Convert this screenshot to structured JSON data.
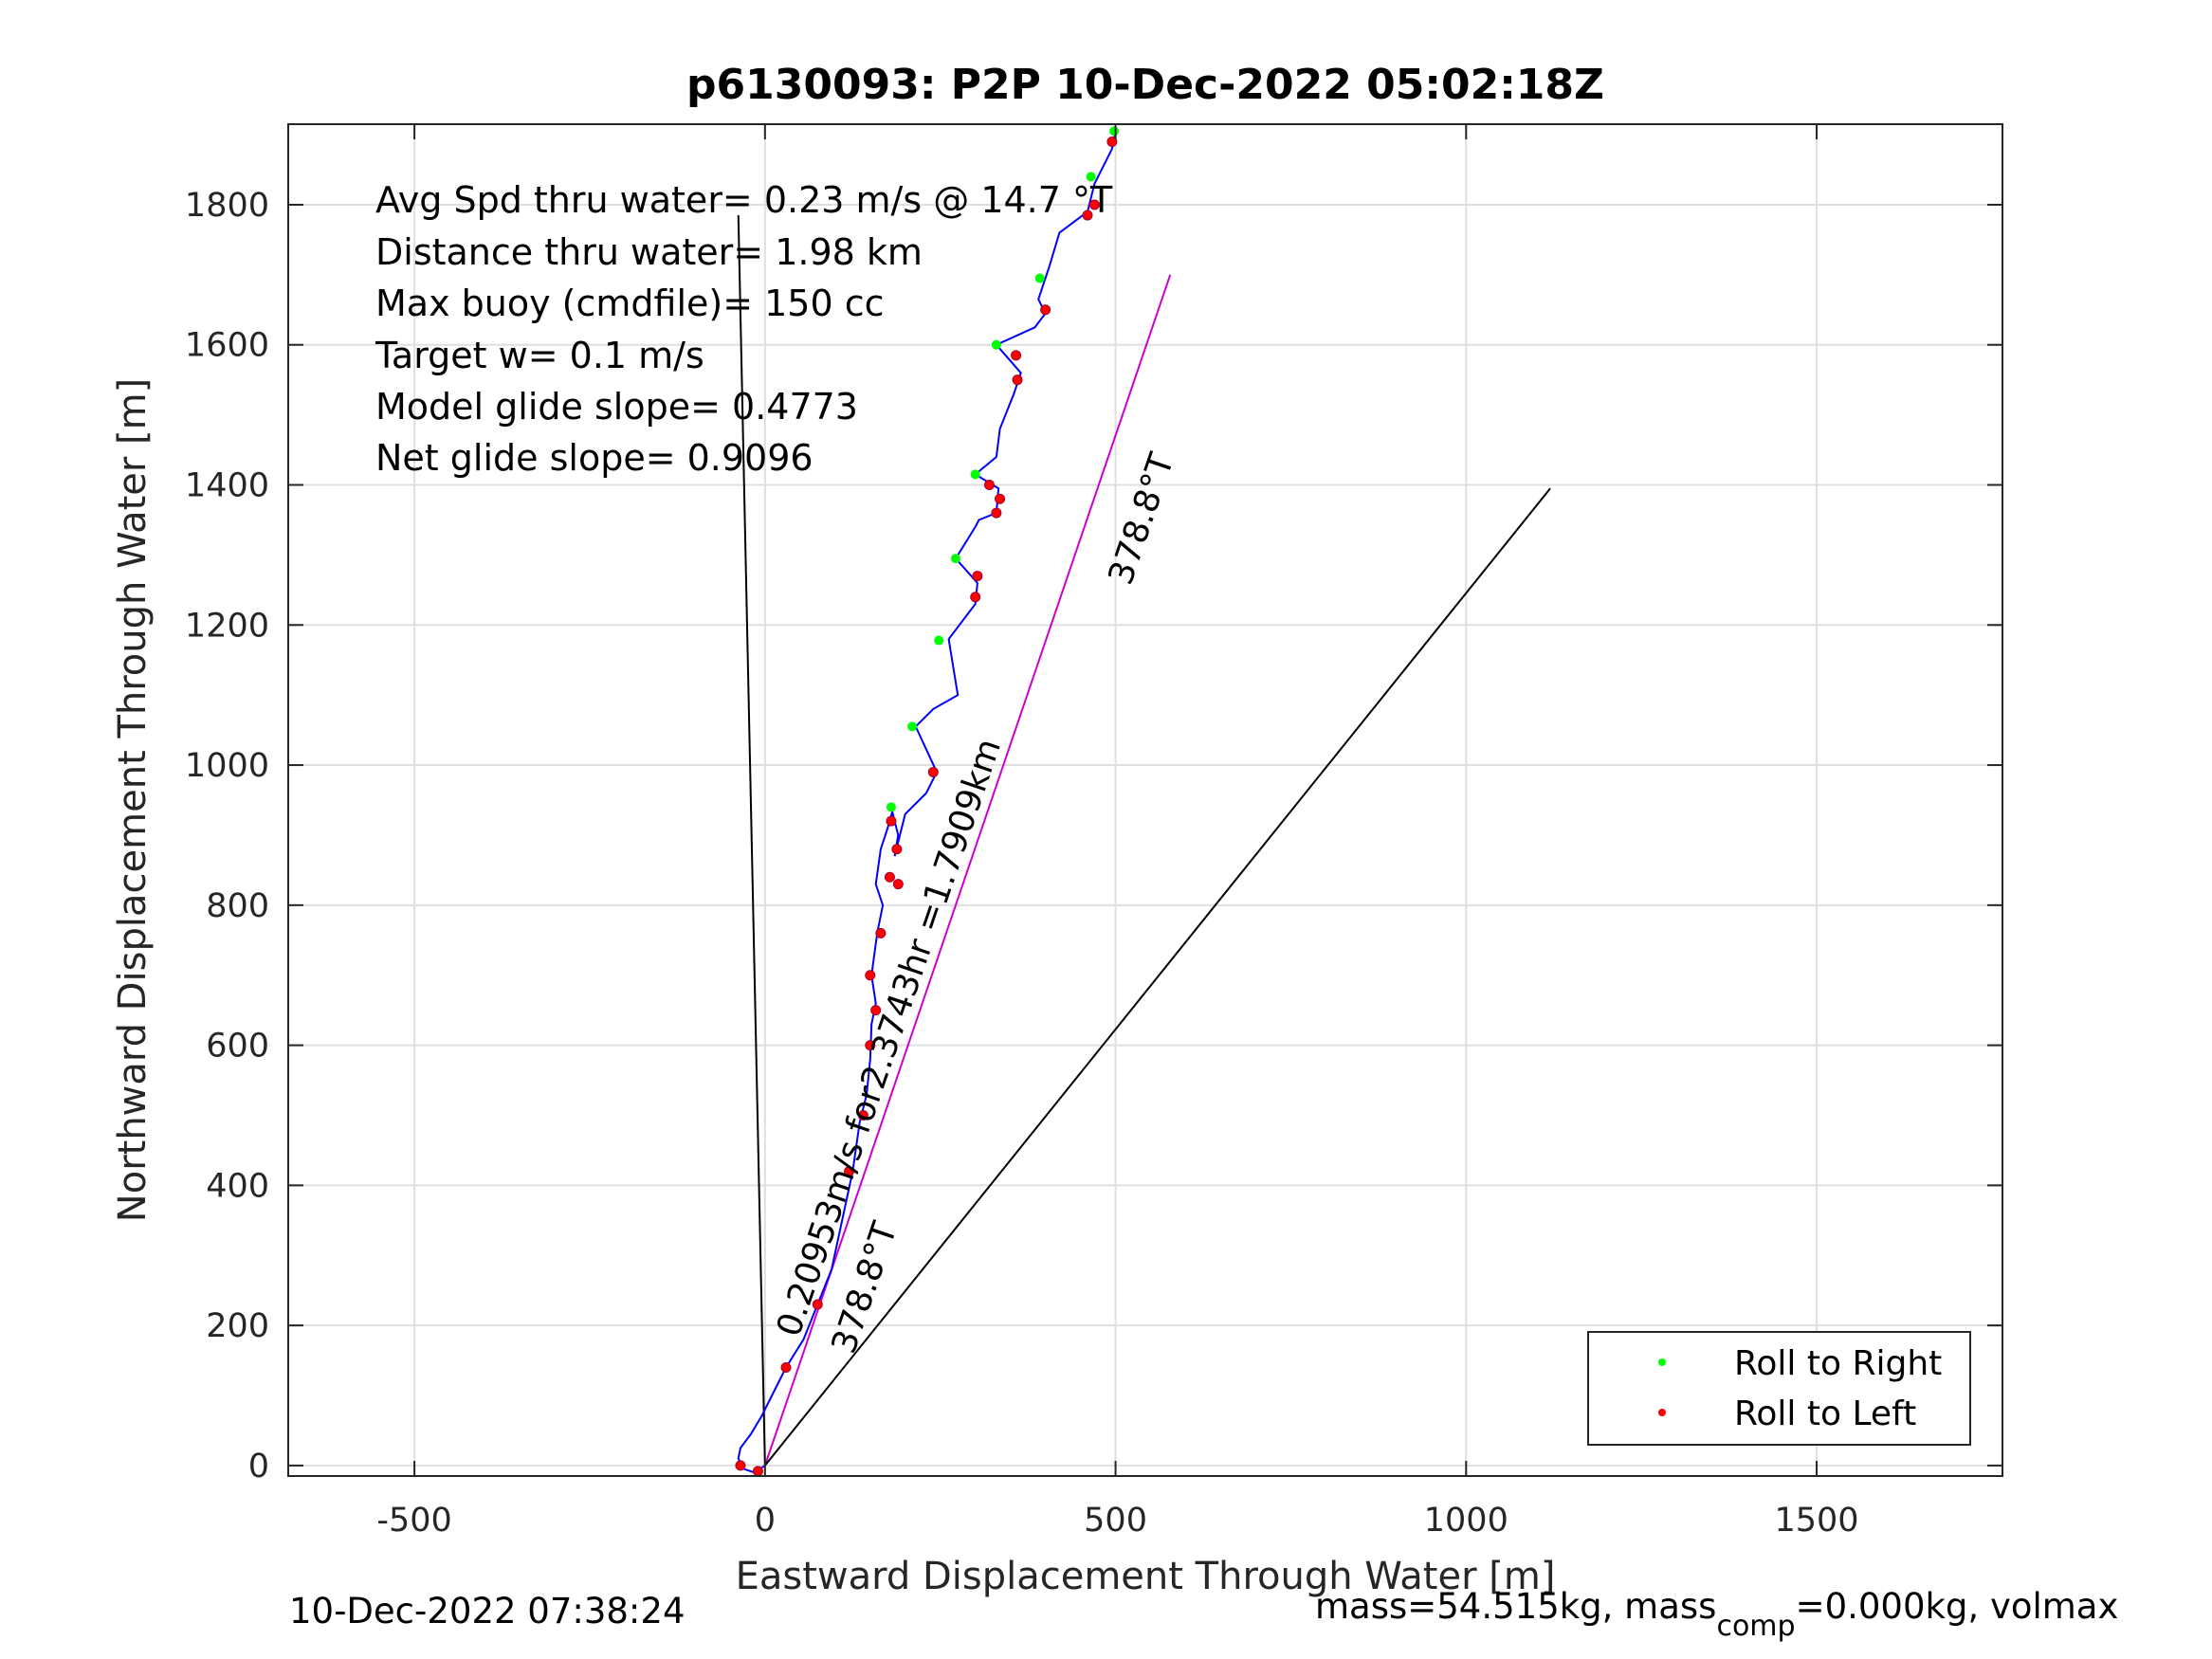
{
  "chart_data": {
    "type": "line",
    "title": "p6130093: P2P 10-Dec-2022 05:02:18Z",
    "xlabel": "Eastward Displacement Through Water [m]",
    "ylabel": "Northward Displacement Through Water [m]",
    "xlim": [
      -680,
      1765
    ],
    "ylim": [
      -15,
      1915
    ],
    "xticks": [
      -500,
      0,
      500,
      1000,
      1500
    ],
    "yticks": [
      0,
      200,
      400,
      600,
      800,
      1000,
      1200,
      1400,
      1600,
      1800
    ],
    "xtick_labels": [
      "-500",
      "0",
      "500",
      "1000",
      "1500"
    ],
    "ytick_labels": [
      "0",
      "200",
      "400",
      "600",
      "800",
      "1000",
      "1200",
      "1400",
      "1600",
      "1800"
    ],
    "grid": true,
    "legend_position": "bottom-right",
    "info_lines": [
      "Avg Spd thru water=  0.23 m/s @  14.7 °T",
      "Distance thru water=  1.98 km",
      "Max buoy (cmdfile)= 150 cc",
      "Target w= 0.1 m/s",
      "Model glide slope= 0.4773",
      "Net glide slope= 0.9096"
    ],
    "legend": [
      {
        "label": "Roll to Right",
        "color": "#00ff00"
      },
      {
        "label": "Roll to Left",
        "color": "#ff0000"
      }
    ],
    "track": {
      "color": "#0000ff",
      "x": [
        0,
        -15,
        -30,
        -38,
        -35,
        -20,
        -5,
        10,
        30,
        55,
        75,
        95,
        110,
        125,
        135,
        145,
        150,
        152,
        158,
        152,
        160,
        168,
        158,
        165,
        175,
        182,
        180,
        190,
        185,
        200,
        230,
        245,
        215,
        240,
        275,
        262,
        300,
        303,
        272,
        300,
        305,
        330,
        333,
        300,
        330,
        335,
        355,
        365,
        330,
        385,
        400,
        390,
        400,
        405,
        420,
        460,
        470,
        495,
        500
      ],
      "y": [
        0,
        -10,
        -5,
        10,
        25,
        45,
        70,
        100,
        140,
        180,
        230,
        280,
        350,
        420,
        490,
        530,
        580,
        630,
        660,
        700,
        760,
        800,
        830,
        880,
        910,
        935,
        940,
        900,
        870,
        930,
        960,
        990,
        1055,
        1080,
        1100,
        1180,
        1230,
        1260,
        1295,
        1340,
        1350,
        1360,
        1395,
        1415,
        1440,
        1480,
        1530,
        1560,
        1600,
        1625,
        1645,
        1665,
        1695,
        1710,
        1760,
        1790,
        1830,
        1880,
        1905
      ],
      "roll_right_points": [
        [
          180,
          940
        ],
        [
          210,
          1055
        ],
        [
          248,
          1178
        ],
        [
          272,
          1295
        ],
        [
          300,
          1415
        ],
        [
          330,
          1600
        ],
        [
          392,
          1695
        ],
        [
          465,
          1840
        ],
        [
          498,
          1905
        ]
      ],
      "roll_left_points": [
        [
          -35,
          0
        ],
        [
          -10,
          -8
        ],
        [
          30,
          140
        ],
        [
          75,
          230
        ],
        [
          120,
          420
        ],
        [
          140,
          500
        ],
        [
          150,
          600
        ],
        [
          158,
          650
        ],
        [
          150,
          700
        ],
        [
          165,
          760
        ],
        [
          178,
          840
        ],
        [
          180,
          920
        ],
        [
          188,
          880
        ],
        [
          190,
          830
        ],
        [
          240,
          990
        ],
        [
          300,
          1240
        ],
        [
          303,
          1270
        ],
        [
          330,
          1360
        ],
        [
          335,
          1380
        ],
        [
          320,
          1400
        ],
        [
          360,
          1550
        ],
        [
          358,
          1585
        ],
        [
          400,
          1650
        ],
        [
          460,
          1785
        ],
        [
          470,
          1800
        ],
        [
          495,
          1890
        ]
      ]
    },
    "vectors": [
      {
        "name": "heading-line-up",
        "color": "#000000",
        "x": [
          0,
          -38
        ],
        "y": [
          0,
          1785
        ]
      },
      {
        "name": "current-line-magenta",
        "color": "#cc00cc",
        "x": [
          0,
          578
        ],
        "y": [
          0,
          1700
        ]
      },
      {
        "name": "current-line-black",
        "color": "#000000",
        "x": [
          0,
          1120
        ],
        "y": [
          0,
          1395
        ]
      }
    ],
    "annotations": [
      {
        "text": "0.20953m/s for2.3743hr =1.7909km",
        "x": 0,
        "y": 0,
        "angle": 18.8
      },
      {
        "text": "378.8°T",
        "x": 0,
        "y": 0,
        "angle": 18.8
      },
      {
        "text": "378.8°T",
        "x": 0,
        "y": 0,
        "angle": 18.8
      }
    ]
  },
  "footer": {
    "timestamp": "10-Dec-2022 07:38:24",
    "mass_text": "mass=54.515kg, mass",
    "mass_sub": "comp",
    "mass_rest": "=0.000kg, volmax"
  }
}
